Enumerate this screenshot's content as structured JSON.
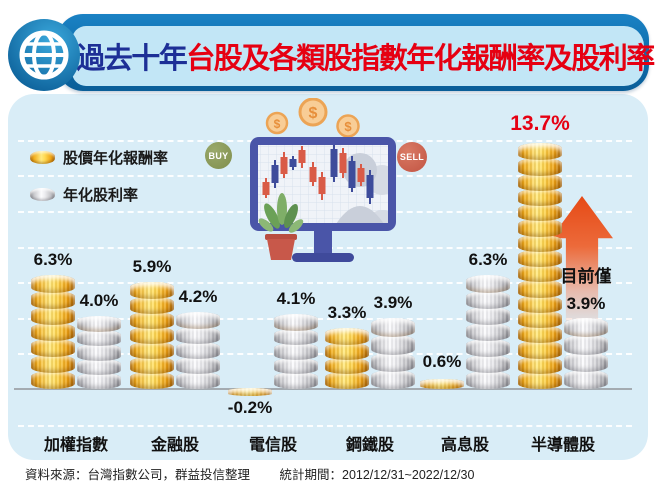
{
  "header": {
    "title_prefix": "過去十年",
    "title_main": "台股及各類股指數年化報酬率及股利率"
  },
  "legend": {
    "items": [
      {
        "icon": "gold-coin",
        "label": "股價年化報酬率"
      },
      {
        "icon": "silver-coin",
        "label": "年化股利率"
      }
    ]
  },
  "illustration": {
    "buy_label": "BUY",
    "sell_label": "SELL"
  },
  "annotation": {
    "line1": "目前僅",
    "line2": "3.9%"
  },
  "chart_data": {
    "type": "bar",
    "title": "過去十年台股及各類股指數年化報酬率及股利率",
    "categories": [
      "加權指數",
      "金融股",
      "電信股",
      "鋼鐵股",
      "高息股",
      "半導體股"
    ],
    "series": [
      {
        "name": "股價年化報酬率",
        "style": "gold",
        "values": [
          6.3,
          5.9,
          -0.2,
          3.3,
          0.6,
          13.7
        ],
        "labels": [
          "6.3%",
          "5.9%",
          "-0.2%",
          "3.3%",
          "0.6%",
          "13.7%"
        ]
      },
      {
        "name": "年化股利率",
        "style": "silver",
        "values": [
          4.0,
          4.2,
          4.1,
          3.9,
          6.3,
          3.9
        ],
        "labels": [
          "4.0%",
          "4.2%",
          "4.1%",
          "3.9%",
          "6.3%",
          "3.9%"
        ]
      }
    ],
    "ylim": [
      -2,
      14
    ],
    "grid_step": 2,
    "grid": "dashed-white",
    "legend_position": "top-left",
    "highlight": {
      "series": 0,
      "index": 5,
      "color": "#e60012"
    },
    "annotation_target": {
      "series": 1,
      "index": 5
    }
  },
  "footer": {
    "source": "資料來源：台灣指數公司，群益投信整理",
    "period": "統計期間：2012/12/31~2022/12/30"
  },
  "colors": {
    "header_blue": "#0d6cab",
    "header_light_blue": "#c2e6f6",
    "title_navy": "#1d2f96",
    "title_red": "#e60012",
    "panel_blue": "#d9edf7",
    "gold": "#f6b91f",
    "silver": "#d9d9dc",
    "buy_green": "#8a9a5c",
    "sell_red": "#c96451",
    "arrow_orange": "#e64a16"
  }
}
